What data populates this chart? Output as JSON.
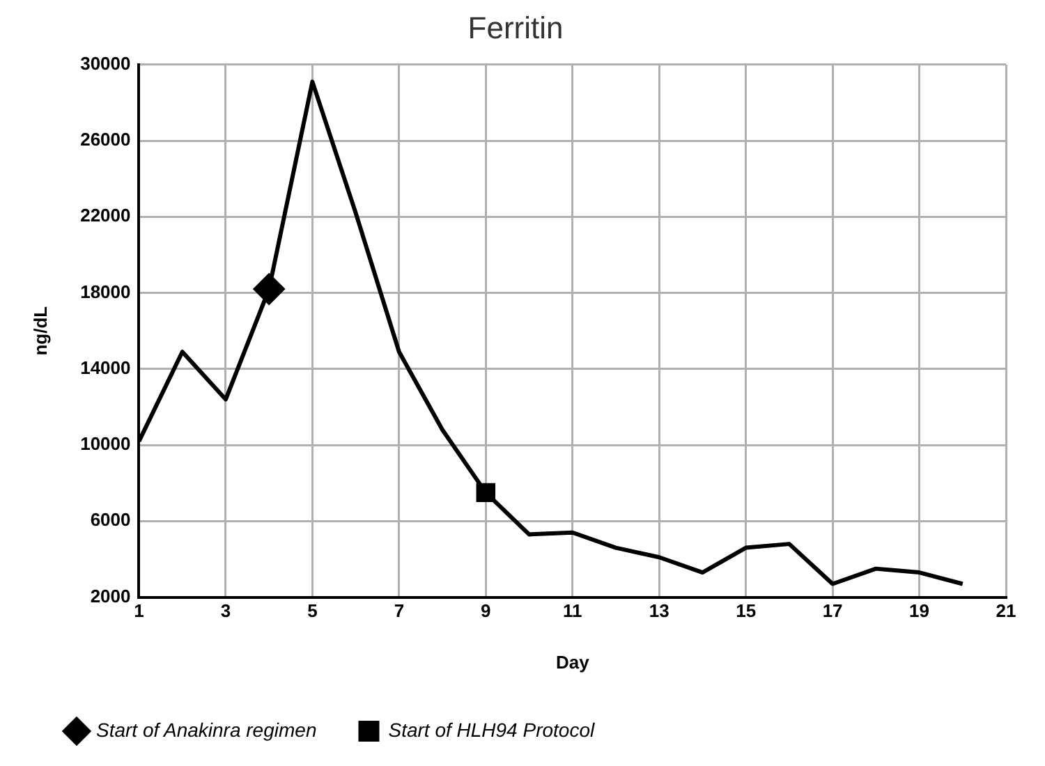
{
  "chart_data": {
    "type": "line",
    "title": "Ferritin",
    "xlabel": "Day",
    "ylabel": "ng/dL",
    "x": [
      1,
      2,
      3,
      4,
      5,
      6,
      7,
      8,
      9,
      10,
      11,
      12,
      13,
      14,
      15,
      16,
      17,
      18,
      19,
      20
    ],
    "series": [
      {
        "color": "#000000",
        "marker": "none",
        "values": [
          10200,
          14900,
          12400,
          18200,
          29100,
          22200,
          14900,
          10800,
          7500,
          5300,
          5400,
          4600,
          4100,
          3300,
          4600,
          4800,
          2700,
          3500,
          3300,
          2700
        ]
      },
      {
        "type": "scatter",
        "name": "Start of Anakinra regimen",
        "color": "#000000",
        "marker": "diamond",
        "x": [
          4
        ],
        "values": [
          18200
        ]
      },
      {
        "type": "scatter",
        "name": "Start of HLH94 Protocol",
        "color": "#000000",
        "marker": "square",
        "x": [
          9
        ],
        "values": [
          7500
        ]
      }
    ],
    "xlim": [
      1,
      21
    ],
    "xticks": [
      1,
      3,
      5,
      7,
      9,
      11,
      13,
      15,
      17,
      19,
      21
    ],
    "ylim": [
      2000,
      30000
    ],
    "yticks": [
      2000,
      6000,
      10000,
      14000,
      18000,
      22000,
      26000,
      30000
    ],
    "grid": true,
    "legend": "bottom"
  }
}
